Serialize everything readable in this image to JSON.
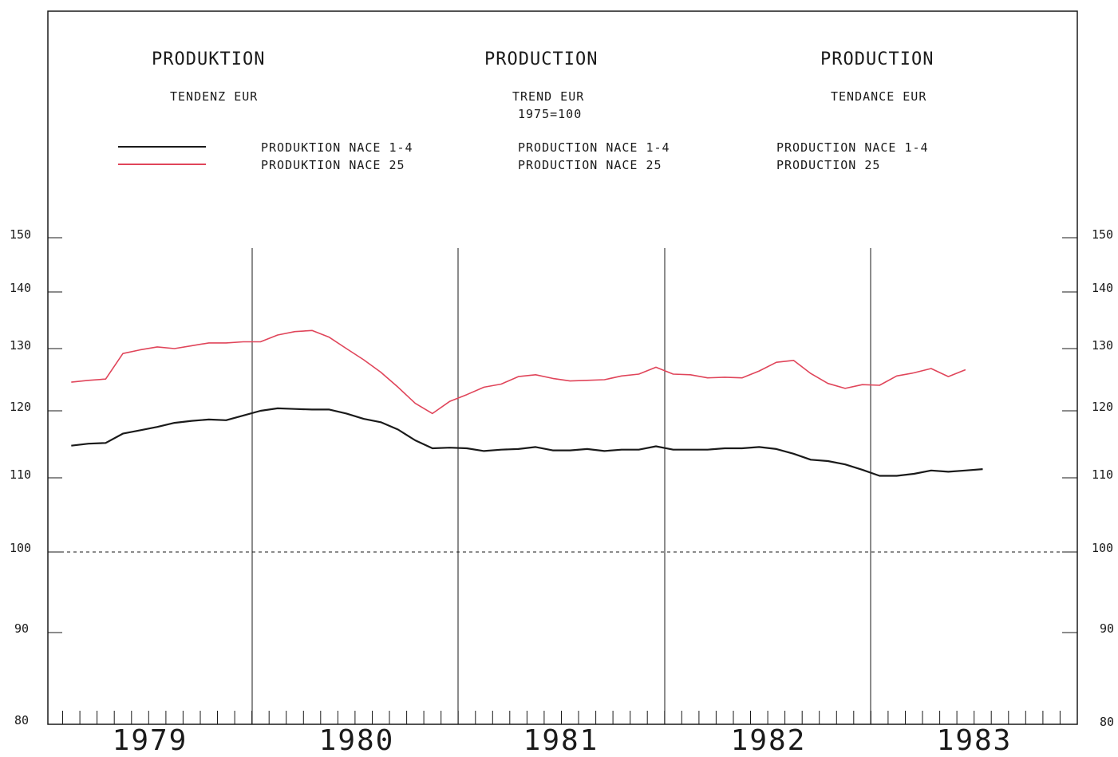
{
  "header": {
    "col1": {
      "title": "PRODUKTION",
      "subtitle": "TENDENZ EUR",
      "series": [
        "PRODUKTION NACE 1-4",
        "PRODUKTION NACE 25"
      ]
    },
    "col2": {
      "title": "PRODUCTION",
      "subtitle": "TREND EUR",
      "base": "1975=100",
      "series": [
        "PRODUCTION NACE 1-4",
        "PRODUCTION NACE 25"
      ]
    },
    "col3": {
      "title": "PRODUCTION",
      "subtitle": "TENDANCE EUR",
      "series": [
        "PRODUCTION NACE 1-4",
        "PRODUCTION 25"
      ]
    }
  },
  "colors": {
    "nace14": "#1a1a1a",
    "nace25": "#e0455a"
  },
  "chart_data": {
    "type": "line",
    "ylim": [
      80,
      150
    ],
    "yticks": [
      80,
      90,
      100,
      110,
      120,
      130,
      140,
      150
    ],
    "reference_line": 100,
    "x_start": "1978-11",
    "x_categories": [
      "1979",
      "1980",
      "1981",
      "1982",
      "1983"
    ],
    "grid": false,
    "legend": "top-left",
    "series": [
      {
        "name": "PRODUKTION NACE 1-4",
        "color": "#1a1a1a",
        "points": [
          [
            "1978-11",
            114.8
          ],
          [
            "1978-12",
            115.1
          ],
          [
            "1979-01",
            115.2
          ],
          [
            "1979-02",
            116.6
          ],
          [
            "1979-03",
            117.1
          ],
          [
            "1979-04",
            117.6
          ],
          [
            "1979-05",
            118.2
          ],
          [
            "1979-06",
            118.5
          ],
          [
            "1979-07",
            118.7
          ],
          [
            "1979-08",
            118.6
          ],
          [
            "1979-09",
            119.3
          ],
          [
            "1979-10",
            120.0
          ],
          [
            "1979-11",
            120.4
          ],
          [
            "1979-12",
            120.3
          ],
          [
            "1980-01",
            120.2
          ],
          [
            "1980-02",
            120.2
          ],
          [
            "1980-03",
            119.6
          ],
          [
            "1980-04",
            118.8
          ],
          [
            "1980-05",
            118.3
          ],
          [
            "1980-06",
            117.2
          ],
          [
            "1980-07",
            115.6
          ],
          [
            "1980-08",
            114.4
          ],
          [
            "1980-09",
            114.5
          ],
          [
            "1980-10",
            114.4
          ],
          [
            "1980-11",
            114.0
          ],
          [
            "1980-12",
            114.2
          ],
          [
            "1981-01",
            114.3
          ],
          [
            "1981-02",
            114.6
          ],
          [
            "1981-03",
            114.1
          ],
          [
            "1981-04",
            114.1
          ],
          [
            "1981-05",
            114.3
          ],
          [
            "1981-06",
            114.0
          ],
          [
            "1981-07",
            114.2
          ],
          [
            "1981-08",
            114.2
          ],
          [
            "1981-09",
            114.7
          ],
          [
            "1981-10",
            114.2
          ],
          [
            "1981-11",
            114.2
          ],
          [
            "1981-12",
            114.2
          ],
          [
            "1982-01",
            114.4
          ],
          [
            "1982-02",
            114.4
          ],
          [
            "1982-03",
            114.6
          ],
          [
            "1982-04",
            114.3
          ],
          [
            "1982-05",
            113.6
          ],
          [
            "1982-06",
            112.7
          ],
          [
            "1982-07",
            112.5
          ],
          [
            "1982-08",
            112.0
          ],
          [
            "1982-09",
            111.2
          ],
          [
            "1982-10",
            110.3
          ],
          [
            "1982-11",
            110.3
          ],
          [
            "1982-12",
            110.6
          ],
          [
            "1983-01",
            111.1
          ],
          [
            "1983-02",
            110.9
          ],
          [
            "1983-03",
            111.1
          ],
          [
            "1983-04",
            111.3
          ]
        ]
      },
      {
        "name": "PRODUKTION NACE 25",
        "color": "#e0455a",
        "points": [
          [
            "1978-11",
            124.6
          ],
          [
            "1978-12",
            124.9
          ],
          [
            "1979-01",
            125.1
          ],
          [
            "1979-02",
            129.2
          ],
          [
            "1979-03",
            129.8
          ],
          [
            "1979-04",
            130.3
          ],
          [
            "1979-05",
            130.0
          ],
          [
            "1979-06",
            130.5
          ],
          [
            "1979-07",
            131.0
          ],
          [
            "1979-08",
            131.0
          ],
          [
            "1979-09",
            131.2
          ],
          [
            "1979-10",
            131.2
          ],
          [
            "1979-11",
            132.4
          ],
          [
            "1979-12",
            133.0
          ],
          [
            "1980-01",
            133.2
          ],
          [
            "1980-02",
            132.0
          ],
          [
            "1980-03",
            130.0
          ],
          [
            "1980-04",
            128.2
          ],
          [
            "1980-05",
            126.2
          ],
          [
            "1980-06",
            123.8
          ],
          [
            "1980-07",
            121.2
          ],
          [
            "1980-08",
            119.6
          ],
          [
            "1980-09",
            121.5
          ],
          [
            "1980-10",
            122.6
          ],
          [
            "1980-11",
            123.8
          ],
          [
            "1980-12",
            124.3
          ],
          [
            "1981-01",
            125.5
          ],
          [
            "1981-02",
            125.8
          ],
          [
            "1981-03",
            125.2
          ],
          [
            "1981-04",
            124.8
          ],
          [
            "1981-05",
            124.9
          ],
          [
            "1981-06",
            125.0
          ],
          [
            "1981-07",
            125.6
          ],
          [
            "1981-08",
            125.9
          ],
          [
            "1981-09",
            127.0
          ],
          [
            "1981-10",
            125.9
          ],
          [
            "1981-11",
            125.8
          ],
          [
            "1981-12",
            125.3
          ],
          [
            "1982-01",
            125.4
          ],
          [
            "1982-02",
            125.3
          ],
          [
            "1982-03",
            126.4
          ],
          [
            "1982-04",
            127.8
          ],
          [
            "1982-05",
            128.1
          ],
          [
            "1982-06",
            126.0
          ],
          [
            "1982-07",
            124.4
          ],
          [
            "1982-08",
            123.6
          ],
          [
            "1982-09",
            124.2
          ],
          [
            "1982-10",
            124.1
          ],
          [
            "1982-11",
            125.6
          ],
          [
            "1982-12",
            126.1
          ],
          [
            "1983-01",
            126.8
          ],
          [
            "1983-02",
            125.5
          ],
          [
            "1983-03",
            126.6
          ]
        ]
      }
    ]
  }
}
